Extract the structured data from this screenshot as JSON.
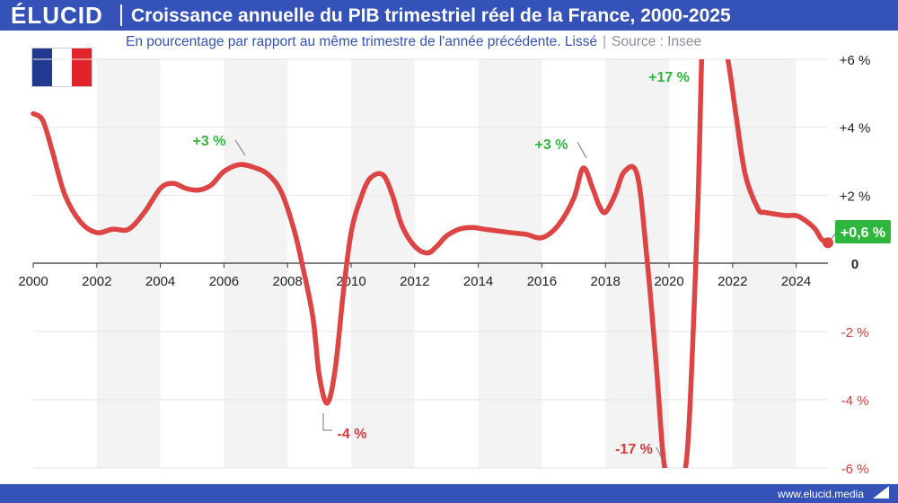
{
  "header": {
    "brand": "ÉLUCID",
    "title": "Croissance annuelle du PIB trimestriel réel de la France, 2000-2025"
  },
  "subtitle": {
    "text": "En pourcentage par rapport au même trimestre de l'année précédente. Lissé",
    "separator": "|",
    "source": "Source : Insee"
  },
  "footer": {
    "text": "www.elucid.media"
  },
  "flag": {
    "colors": [
      "#1f3a8f",
      "#ffffff",
      "#e2232b"
    ]
  },
  "colors": {
    "brand": "#3552b8",
    "line": "#dd4545",
    "positive_label": "#2db83d",
    "negative_label": "#d93a3a",
    "band": "#f3f3f3",
    "grid": "#e6e6e6"
  },
  "chart_data": {
    "type": "line",
    "title": "Croissance annuelle du PIB trimestriel réel de la France, 2000-2025",
    "subtitle": "En pourcentage par rapport au même trimestre de l'année précédente. Lissé",
    "xlim": [
      2000,
      2025
    ],
    "ylim": [
      -6,
      6
    ],
    "x_ticks": [
      2000,
      2002,
      2004,
      2006,
      2008,
      2010,
      2012,
      2014,
      2016,
      2018,
      2020,
      2022,
      2024
    ],
    "x_tick_labels": [
      "2000",
      "2002",
      "2004",
      "2006",
      "2008",
      "2010",
      "2012",
      "2014",
      "2016",
      "2018",
      "2020",
      "2022",
      "2024"
    ],
    "y_ticks": [
      6,
      4,
      2,
      0,
      -2,
      -4,
      -6
    ],
    "y_tick_labels": [
      "+6 %",
      "+4 %",
      "+2 %",
      "0",
      "-2 %",
      "-4 %",
      "-6 %"
    ],
    "grid": true,
    "series": [
      {
        "x": [
          2000,
          2000.3,
          2000.6,
          2001,
          2001.5,
          2002,
          2002.5,
          2003,
          2003.5,
          2004,
          2004.4,
          2004.8,
          2005.2,
          2005.6,
          2006,
          2006.5,
          2007,
          2007.4,
          2007.8,
          2008.2,
          2008.5,
          2008.8,
          2009.0,
          2009.25,
          2009.5,
          2009.75,
          2010,
          2010.3,
          2010.6,
          2011,
          2011.3,
          2011.6,
          2012,
          2012.4,
          2012.7,
          2013,
          2013.4,
          2013.8,
          2014.2,
          2014.6,
          2015,
          2015.5,
          2016,
          2016.5,
          2017,
          2017.3,
          2017.6,
          2017.8,
          2018,
          2018.3,
          2018.6,
          2019,
          2019.3,
          2019.6,
          2019.8,
          2019.95,
          2020.1,
          2020.3,
          2020.6,
          2020.9,
          2021.05,
          2021.2,
          2021.4,
          2021.6,
          2021.85,
          2022.1,
          2022.4,
          2022.8,
          2023.0,
          2023.3,
          2023.7,
          2024,
          2024.3,
          2024.6,
          2024.8,
          2025
        ],
        "y": [
          4.4,
          4.2,
          3.3,
          2.0,
          1.2,
          0.9,
          1.0,
          1.0,
          1.5,
          2.2,
          2.35,
          2.2,
          2.15,
          2.3,
          2.7,
          2.9,
          2.8,
          2.6,
          2.1,
          1.0,
          -0.2,
          -1.6,
          -3.3,
          -4.1,
          -3.1,
          -0.9,
          0.9,
          1.9,
          2.5,
          2.6,
          2.0,
          1.1,
          0.5,
          0.3,
          0.5,
          0.8,
          1.0,
          1.05,
          1.0,
          0.95,
          0.9,
          0.85,
          0.75,
          1.1,
          1.9,
          2.8,
          2.2,
          1.7,
          1.5,
          2.0,
          2.7,
          2.6,
          0.2,
          -3.0,
          -5.5,
          -6.5,
          -7.5,
          -6.8,
          -5.2,
          1.5,
          6.6,
          7.2,
          7.2,
          6.8,
          6.0,
          4.4,
          2.6,
          1.6,
          1.5,
          1.45,
          1.4,
          1.4,
          1.25,
          1.0,
          0.7,
          0.6
        ]
      }
    ],
    "annotations": [
      {
        "text": "+3 %",
        "x": 2006.6,
        "y": 2.9,
        "sign": "positive"
      },
      {
        "text": "-4 %",
        "x": 2009.0,
        "y": -4.1,
        "sign": "negative"
      },
      {
        "text": "+3 %",
        "x": 2017.6,
        "y": 2.8,
        "sign": "positive"
      },
      {
        "text": "+17 %",
        "x": 2021.0,
        "y": 6,
        "sign": "positive"
      },
      {
        "text": "-17 %",
        "x": 2020.0,
        "y": -6,
        "sign": "negative"
      }
    ],
    "last_value": {
      "text": "+0,6 %",
      "x": 2025,
      "y": 0.6
    }
  }
}
